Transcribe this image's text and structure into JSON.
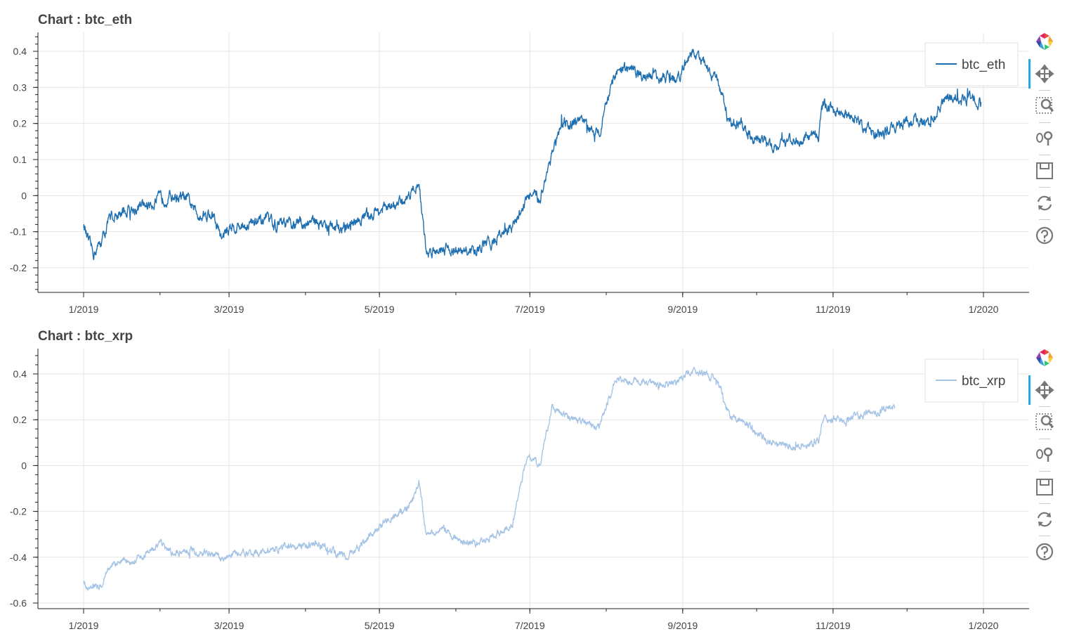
{
  "charts": [
    {
      "title": "Chart : btc_eth",
      "legend_label": "btc_eth",
      "color": "#1f6fb0",
      "yticks": [
        0.4,
        0.3,
        0.2,
        0.1,
        0,
        -0.1,
        -0.2
      ],
      "ytick_labels": [
        "0.4",
        "0.3",
        "0.2",
        "0.1",
        "0",
        "-0.1",
        "-0.2"
      ],
      "xtick_labels": [
        "1/2019",
        "3/2019",
        "5/2019",
        "7/2019",
        "9/2019",
        "11/2019",
        "1/2020"
      ]
    },
    {
      "title": "Chart : btc_xrp",
      "legend_label": "btc_xrp",
      "color": "#a6c4e6",
      "yticks": [
        0.4,
        0.2,
        0,
        -0.2,
        -0.4,
        -0.6
      ],
      "ytick_labels": [
        "0.4",
        "0.2",
        "0",
        "-0.2",
        "-0.4",
        "-0.6"
      ],
      "xtick_labels": [
        "1/2019",
        "3/2019",
        "5/2019",
        "7/2019",
        "9/2019",
        "11/2019",
        "1/2020"
      ]
    }
  ],
  "toolbar_tools": [
    "bokeh-logo-icon",
    "pan-icon",
    "box-zoom-icon",
    "wheel-zoom-icon",
    "save-icon",
    "reset-icon",
    "help-icon"
  ],
  "chart_data": [
    {
      "type": "line",
      "title": "Chart : btc_eth",
      "xlabel": "",
      "ylabel": "",
      "ylim": [
        -0.27,
        0.43
      ],
      "grid": true,
      "legend_position": "top-right",
      "x": [
        "2019-01-01",
        "2019-01-03",
        "2019-01-05",
        "2019-01-08",
        "2019-01-12",
        "2019-01-16",
        "2019-01-20",
        "2019-01-25",
        "2019-02-01",
        "2019-02-06",
        "2019-02-12",
        "2019-02-16",
        "2019-02-22",
        "2019-02-26",
        "2019-03-01",
        "2019-03-08",
        "2019-03-15",
        "2019-03-22",
        "2019-03-29",
        "2019-04-05",
        "2019-04-12",
        "2019-04-18",
        "2019-04-25",
        "2019-05-01",
        "2019-05-08",
        "2019-05-14",
        "2019-05-17",
        "2019-05-20",
        "2019-05-27",
        "2019-06-03",
        "2019-06-10",
        "2019-06-17",
        "2019-06-24",
        "2019-06-30",
        "2019-07-05",
        "2019-07-10",
        "2019-07-15",
        "2019-07-22",
        "2019-07-29",
        "2019-08-05",
        "2019-08-10",
        "2019-08-16",
        "2019-08-22",
        "2019-08-29",
        "2019-09-05",
        "2019-09-10",
        "2019-09-15",
        "2019-09-20",
        "2019-09-25",
        "2019-10-01",
        "2019-10-08",
        "2019-10-15",
        "2019-10-20",
        "2019-10-26",
        "2019-10-28",
        "2019-11-05",
        "2019-11-12",
        "2019-11-19",
        "2019-11-26",
        "2019-12-03",
        "2019-12-10",
        "2019-12-17",
        "2019-12-24",
        "2019-12-31"
      ],
      "series": [
        {
          "name": "btc_eth",
          "color": "#1f6fb0",
          "values": [
            -0.08,
            -0.13,
            -0.16,
            -0.13,
            -0.06,
            -0.05,
            -0.04,
            -0.03,
            -0.01,
            0,
            -0.01,
            -0.05,
            -0.05,
            -0.12,
            -0.09,
            -0.08,
            -0.07,
            -0.08,
            -0.08,
            -0.07,
            -0.09,
            -0.09,
            -0.06,
            -0.04,
            -0.03,
            0.01,
            0.04,
            -0.16,
            -0.14,
            -0.16,
            -0.15,
            -0.12,
            -0.09,
            0.0,
            -0.01,
            0.12,
            0.2,
            0.2,
            0.18,
            0.34,
            0.35,
            0.33,
            0.33,
            0.32,
            0.4,
            0.36,
            0.32,
            0.2,
            0.19,
            0.16,
            0.14,
            0.15,
            0.16,
            0.17,
            0.25,
            0.23,
            0.2,
            0.17,
            0.19,
            0.21,
            0.2,
            0.27,
            0.27,
            0.26
          ]
        }
      ]
    },
    {
      "type": "line",
      "title": "Chart : btc_xrp",
      "xlabel": "",
      "ylabel": "",
      "ylim": [
        -0.61,
        0.46
      ],
      "grid": true,
      "legend_position": "top-right",
      "x": [
        "2019-01-01",
        "2019-01-03",
        "2019-01-05",
        "2019-01-08",
        "2019-01-12",
        "2019-01-16",
        "2019-01-20",
        "2019-01-25",
        "2019-02-01",
        "2019-02-06",
        "2019-02-12",
        "2019-02-16",
        "2019-02-22",
        "2019-02-26",
        "2019-03-01",
        "2019-03-08",
        "2019-03-15",
        "2019-03-22",
        "2019-03-29",
        "2019-04-05",
        "2019-04-12",
        "2019-04-18",
        "2019-04-25",
        "2019-05-01",
        "2019-05-08",
        "2019-05-14",
        "2019-05-17",
        "2019-05-20",
        "2019-05-27",
        "2019-06-03",
        "2019-06-10",
        "2019-06-17",
        "2019-06-24",
        "2019-06-30",
        "2019-07-05",
        "2019-07-10",
        "2019-07-15",
        "2019-07-22",
        "2019-07-29",
        "2019-08-05",
        "2019-08-10",
        "2019-08-16",
        "2019-08-22",
        "2019-08-29",
        "2019-09-05",
        "2019-09-10",
        "2019-09-15",
        "2019-09-20",
        "2019-09-25",
        "2019-10-01",
        "2019-10-08",
        "2019-10-15",
        "2019-10-20",
        "2019-10-26",
        "2019-10-28",
        "2019-11-05",
        "2019-11-12",
        "2019-11-19",
        "2019-11-26"
      ],
      "series": [
        {
          "name": "btc_xrp",
          "color": "#a6c4e6",
          "values": [
            -0.51,
            -0.53,
            -0.52,
            -0.52,
            -0.43,
            -0.42,
            -0.41,
            -0.39,
            -0.34,
            -0.38,
            -0.37,
            -0.38,
            -0.38,
            -0.42,
            -0.39,
            -0.38,
            -0.38,
            -0.36,
            -0.35,
            -0.34,
            -0.37,
            -0.4,
            -0.33,
            -0.27,
            -0.21,
            -0.17,
            -0.06,
            -0.3,
            -0.28,
            -0.33,
            -0.34,
            -0.3,
            -0.25,
            0.05,
            0.0,
            0.25,
            0.22,
            0.19,
            0.17,
            0.38,
            0.37,
            0.36,
            0.35,
            0.36,
            0.42,
            0.4,
            0.38,
            0.22,
            0.2,
            0.14,
            0.1,
            0.08,
            0.09,
            0.1,
            0.2,
            0.2,
            0.22,
            0.24,
            0.25
          ]
        }
      ]
    }
  ]
}
